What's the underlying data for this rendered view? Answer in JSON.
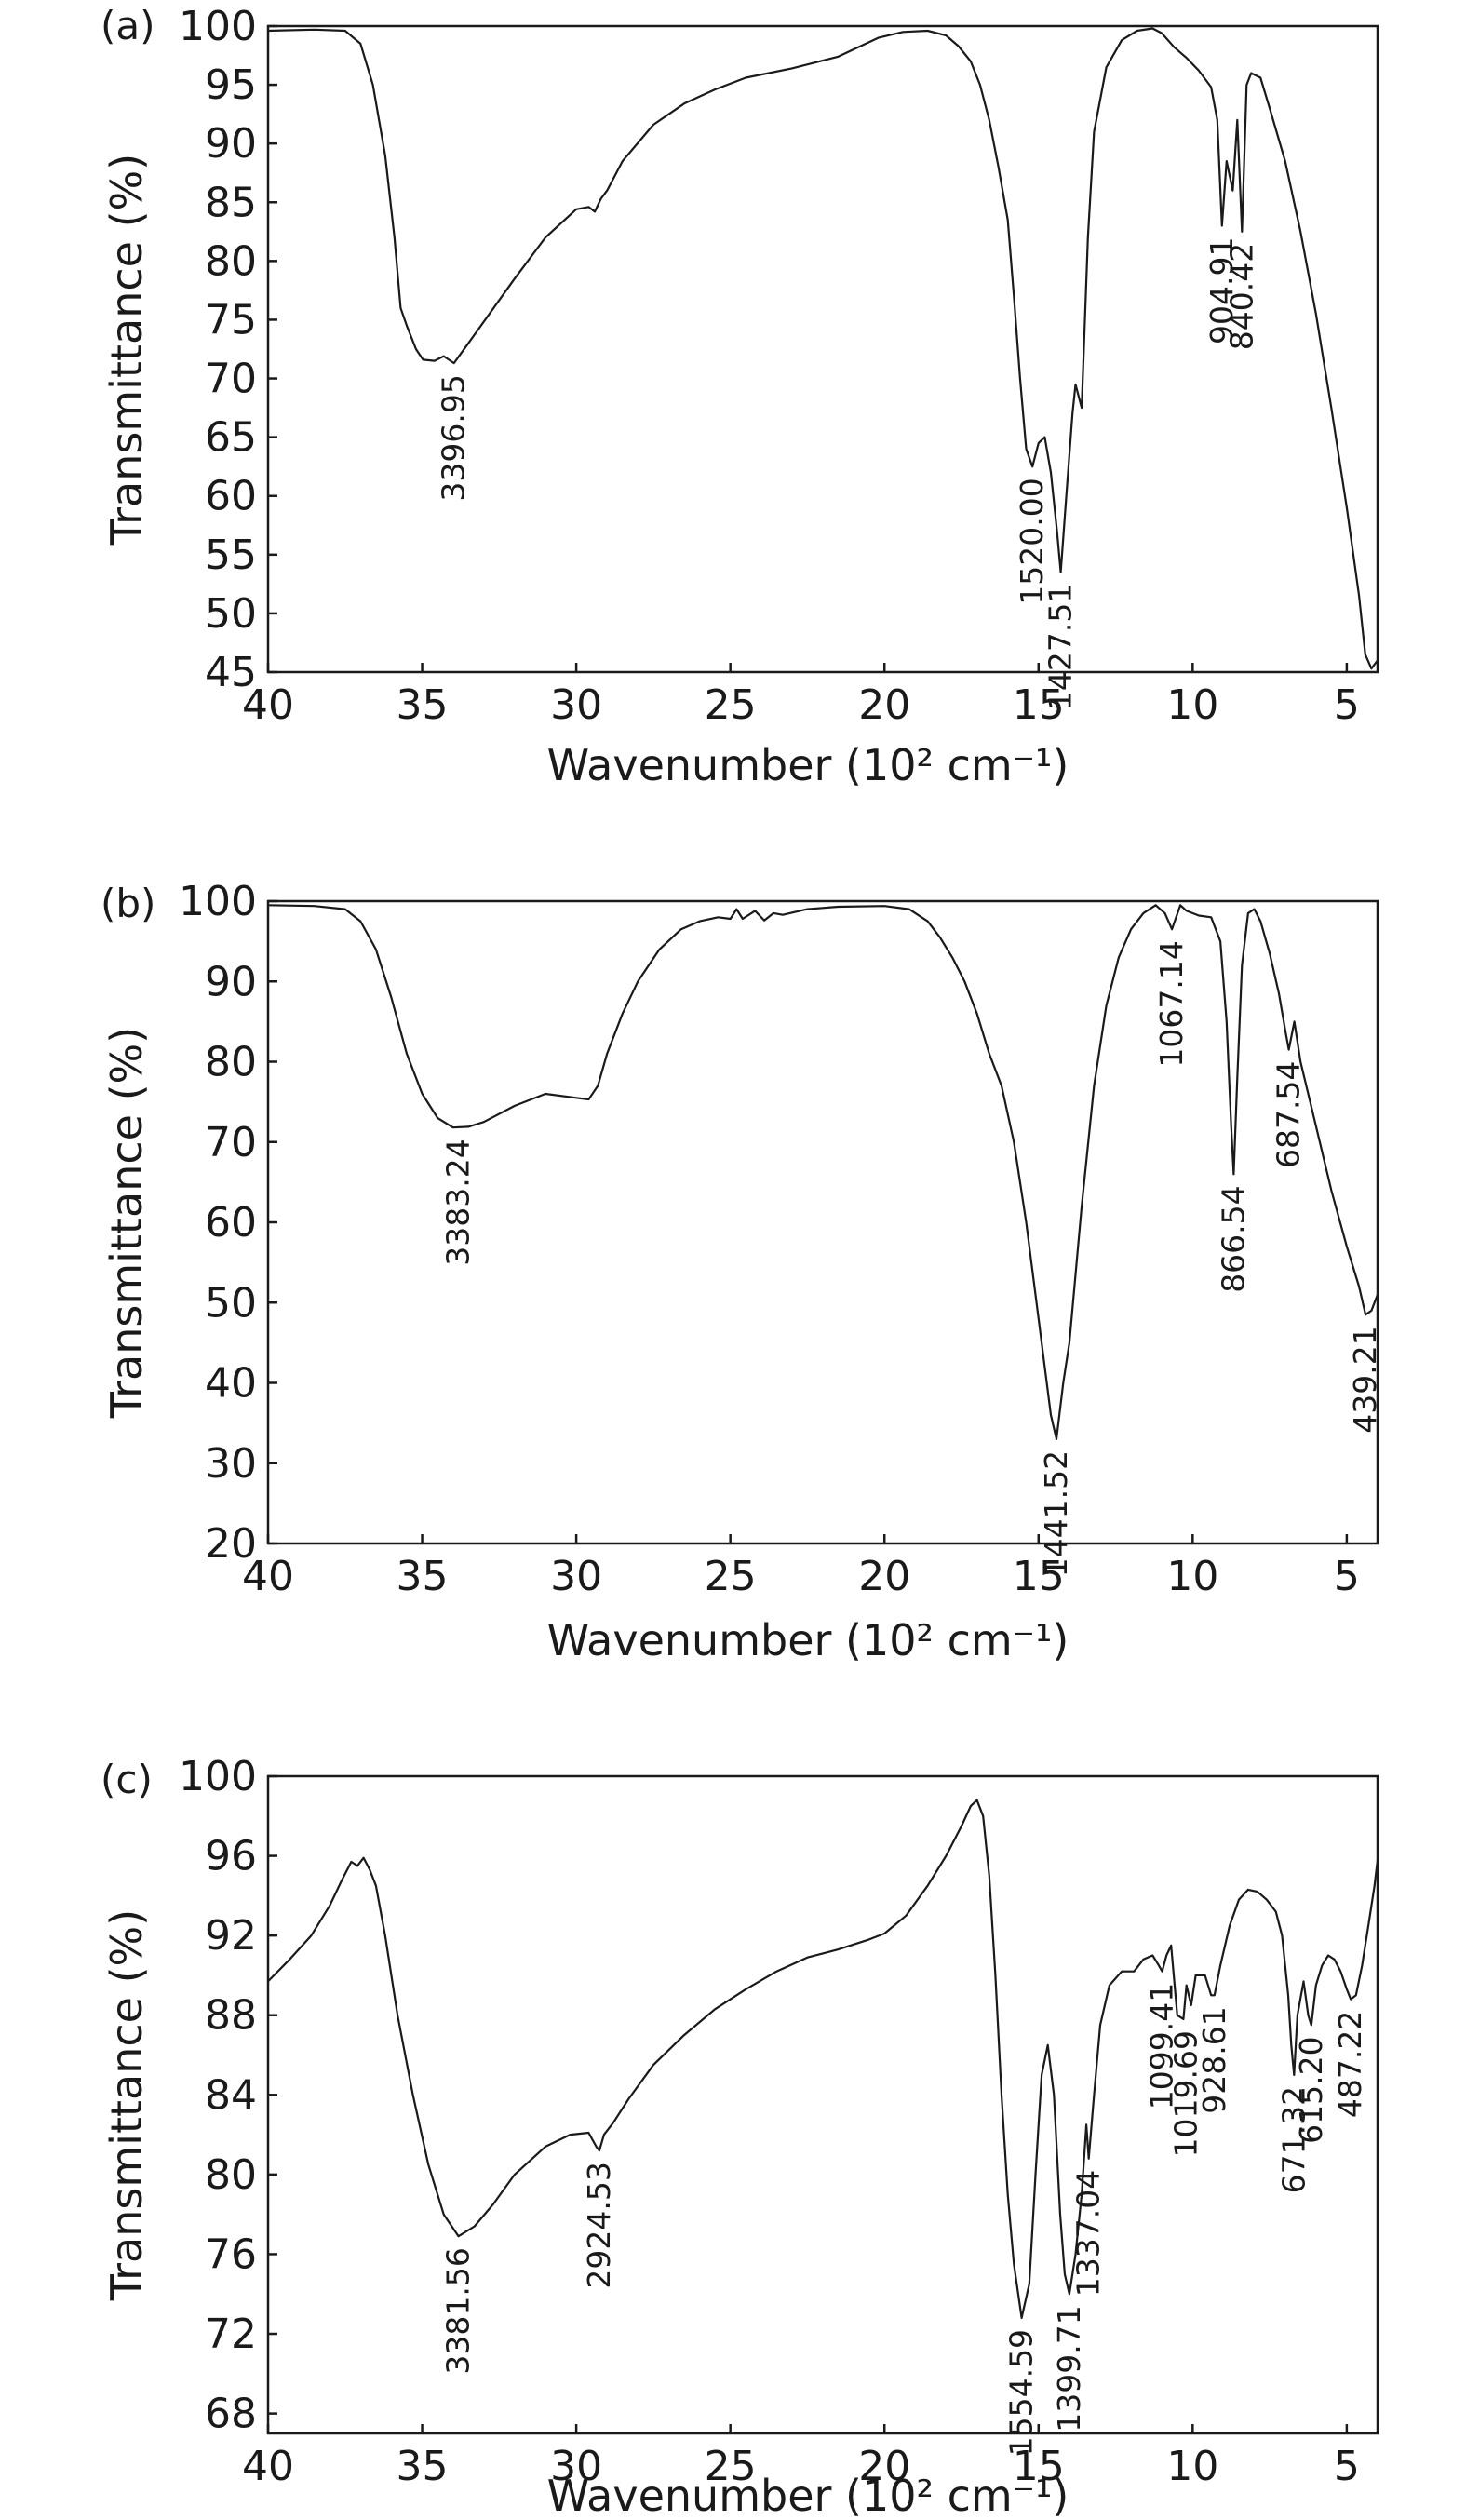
{
  "chart_data": [
    {
      "type": "line",
      "panel": "(a)",
      "xlabel": "Wavenumber (10² cm⁻¹)",
      "ylabel": "Transmittance (%)",
      "xlim": [
        40,
        4
      ],
      "ylim": [
        45,
        100
      ],
      "xticks": [
        40,
        35,
        30,
        25,
        20,
        15,
        10,
        5
      ],
      "yticks": [
        100,
        95,
        90,
        85,
        80,
        75,
        70,
        65,
        60,
        55,
        50,
        45
      ],
      "peaks": [
        {
          "label": "3396.95",
          "x": 33.97,
          "y": 71.3
        },
        {
          "label": "1520.00",
          "x": 15.2,
          "y": 62.5
        },
        {
          "label": "1427.51",
          "x": 14.28,
          "y": 53.5
        },
        {
          "label": "904.91",
          "x": 9.05,
          "y": 83.0
        },
        {
          "label": "840.42",
          "x": 8.4,
          "y": 82.5
        }
      ],
      "series": [
        {
          "name": "spectrum",
          "x": [
            40,
            38.5,
            37.5,
            37,
            36.6,
            36.2,
            35.9,
            35.7,
            35.5,
            35.2,
            34.97,
            34.6,
            34.3,
            33.97,
            33.5,
            32,
            31,
            30,
            29.6,
            29.4,
            29.2,
            29.0,
            28.5,
            27.5,
            26.5,
            25.5,
            24.5,
            23,
            21.5,
            20.2,
            19.4,
            18.6,
            18.0,
            17.6,
            17.2,
            16.9,
            16.6,
            16.3,
            16.0,
            15.8,
            15.6,
            15.4,
            15.2,
            15.0,
            14.8,
            14.6,
            14.4,
            14.28,
            14.1,
            13.9,
            13.8,
            13.6,
            13.4,
            13.2,
            12.8,
            12.3,
            11.8,
            11.3,
            11.0,
            10.6,
            10.2,
            9.8,
            9.4,
            9.2,
            9.05,
            8.9,
            8.7,
            8.55,
            8.4,
            8.25,
            8.1,
            7.8,
            7.5,
            7.0,
            6.5,
            6.0,
            5.5,
            5.0,
            4.6,
            4.4,
            4.2,
            4.0
          ],
          "y": [
            99.6,
            99.7,
            99.6,
            98.5,
            95,
            89,
            82,
            76,
            74.5,
            72.5,
            71.6,
            71.5,
            71.9,
            71.3,
            73,
            78.5,
            82,
            84.4,
            84.6,
            84.2,
            85.3,
            86,
            88.5,
            91.6,
            93.4,
            94.6,
            95.6,
            96.4,
            97.4,
            99.0,
            99.5,
            99.6,
            99.2,
            98.3,
            97.0,
            95.0,
            92.0,
            88.0,
            83.5,
            77.0,
            70.0,
            64.0,
            62.5,
            64.5,
            65.0,
            62.0,
            57.0,
            53.5,
            60.0,
            67.0,
            69.5,
            67.5,
            82.0,
            91.0,
            96.5,
            98.8,
            99.6,
            99.8,
            99.4,
            98.2,
            97.3,
            96.2,
            94.8,
            92.0,
            83.0,
            88.5,
            86.0,
            92.0,
            82.5,
            95.0,
            96.0,
            95.6,
            93.0,
            88.5,
            82.5,
            75.5,
            67.5,
            59.0,
            51.5,
            46.5,
            45.3,
            46.0
          ]
        }
      ]
    },
    {
      "type": "line",
      "panel": "(b)",
      "xlabel": "Wavenumber (10² cm⁻¹)",
      "ylabel": "Transmittance (%)",
      "xlim": [
        40,
        4
      ],
      "ylim": [
        20,
        100
      ],
      "xticks": [
        40,
        35,
        30,
        25,
        20,
        15,
        10,
        5
      ],
      "yticks": [
        100,
        90,
        80,
        70,
        60,
        50,
        40,
        30,
        20
      ],
      "peaks": [
        {
          "label": "3383.24",
          "x": 33.83,
          "y": 71.8
        },
        {
          "label": "1441.52",
          "x": 14.42,
          "y": 33.0
        },
        {
          "label": "1067.14",
          "x": 10.67,
          "y": 96.5
        },
        {
          "label": "866.54",
          "x": 8.67,
          "y": 66.0
        },
        {
          "label": "687.54",
          "x": 6.88,
          "y": 81.5
        },
        {
          "label": "439.21",
          "x": 4.39,
          "y": 48.5
        }
      ],
      "series": [
        {
          "name": "spectrum",
          "x": [
            40,
            38.5,
            37.5,
            37,
            36.5,
            36,
            35.5,
            35,
            34.5,
            34.0,
            33.5,
            33,
            32,
            31,
            30,
            29.6,
            29.3,
            29,
            28.5,
            28,
            27.3,
            26.6,
            26,
            25.4,
            25,
            24.8,
            24.6,
            24.2,
            23.9,
            23.6,
            23.3,
            22.5,
            21.5,
            20,
            19.2,
            18.6,
            18.2,
            17.8,
            17.4,
            17.0,
            16.6,
            16.2,
            15.8,
            15.4,
            15.0,
            14.8,
            14.6,
            14.42,
            14.2,
            14.0,
            13.6,
            13.2,
            12.8,
            12.4,
            12.0,
            11.6,
            11.2,
            10.9,
            10.67,
            10.4,
            10.2,
            9.8,
            9.4,
            9.1,
            8.9,
            8.75,
            8.67,
            8.55,
            8.4,
            8.2,
            8.0,
            7.8,
            7.5,
            7.2,
            7.0,
            6.88,
            6.7,
            6.5,
            6.0,
            5.5,
            5.0,
            4.6,
            4.39,
            4.2,
            4.0
          ],
          "y": [
            99.5,
            99.4,
            99.0,
            97.5,
            94,
            88,
            81,
            76,
            73,
            71.8,
            71.9,
            72.5,
            74.5,
            76.0,
            75.5,
            75.3,
            77,
            81,
            86,
            90,
            94,
            96.5,
            97.5,
            98.0,
            97.8,
            99.0,
            97.8,
            98.8,
            97.6,
            98.5,
            98.3,
            99.0,
            99.3,
            99.4,
            99.0,
            97.5,
            95.5,
            93.0,
            90.0,
            86.0,
            81.0,
            77.0,
            70.0,
            60.0,
            48.0,
            42.0,
            36.0,
            33.0,
            40.0,
            45.0,
            62.0,
            77.0,
            87.0,
            93.0,
            96.5,
            98.5,
            99.5,
            98.5,
            96.5,
            99.5,
            98.8,
            98.2,
            98.0,
            95.0,
            85.0,
            72.0,
            66.0,
            78.0,
            92.0,
            98.5,
            99.0,
            97.5,
            93.5,
            88.5,
            84.0,
            81.5,
            85.0,
            80.0,
            72.0,
            64.0,
            57.0,
            52.0,
            48.5,
            49.0,
            51.0
          ]
        }
      ]
    },
    {
      "type": "line",
      "panel": "(c)",
      "xlabel": "Wavenumber (10² cm⁻¹)",
      "ylabel": "Transmittance (%)",
      "xlim": [
        40,
        4
      ],
      "ylim": [
        67,
        100
      ],
      "xticks": [
        40,
        35,
        30,
        25,
        20,
        15,
        10,
        5
      ],
      "yticks": [
        100,
        96,
        92,
        88,
        84,
        80,
        76,
        72,
        68
      ],
      "peaks": [
        {
          "label": "3381.56",
          "x": 33.82,
          "y": 76.9
        },
        {
          "label": "2924.53",
          "x": 29.25,
          "y": 81.2
        },
        {
          "label": "1554.59",
          "x": 15.55,
          "y": 72.8
        },
        {
          "label": "1399.71",
          "x": 14.0,
          "y": 74.0
        },
        {
          "label": "1337.04",
          "x": 13.37,
          "y": 80.8
        },
        {
          "label": "1099.41",
          "x": 10.99,
          "y": 90.2
        },
        {
          "label": "1019.69",
          "x": 10.2,
          "y": 87.8
        },
        {
          "label": "928.61",
          "x": 9.29,
          "y": 89.0
        },
        {
          "label": "671.32",
          "x": 6.71,
          "y": 85.0
        },
        {
          "label": "615.20",
          "x": 6.15,
          "y": 87.5
        },
        {
          "label": "487.22",
          "x": 4.87,
          "y": 88.8
        }
      ],
      "series": [
        {
          "name": "spectrum",
          "x": [
            40,
            39.3,
            38.6,
            38.0,
            37.6,
            37.3,
            37.1,
            36.9,
            36.7,
            36.5,
            36.2,
            35.8,
            35.3,
            34.8,
            34.3,
            33.82,
            33.3,
            32.7,
            32,
            31,
            30.2,
            29.6,
            29.35,
            29.25,
            29.1,
            28.8,
            28.3,
            27.5,
            26.5,
            25.5,
            24.5,
            23.5,
            22.5,
            21.5,
            20.5,
            20.0,
            19.3,
            18.6,
            18.0,
            17.5,
            17.2,
            17.0,
            16.8,
            16.6,
            16.4,
            16.2,
            16.0,
            15.8,
            15.55,
            15.3,
            15.1,
            14.9,
            14.7,
            14.5,
            14.3,
            14.15,
            14.0,
            13.8,
            13.6,
            13.45,
            13.37,
            13.2,
            13.0,
            12.7,
            12.3,
            11.9,
            11.6,
            11.3,
            11.1,
            10.99,
            10.85,
            10.7,
            10.5,
            10.3,
            10.2,
            10.05,
            9.9,
            9.6,
            9.4,
            9.29,
            9.1,
            8.8,
            8.5,
            8.2,
            7.9,
            7.6,
            7.3,
            7.1,
            6.9,
            6.8,
            6.71,
            6.6,
            6.4,
            6.25,
            6.15,
            6.0,
            5.8,
            5.6,
            5.4,
            5.2,
            5.0,
            4.87,
            4.7,
            4.5,
            4.3,
            4.1,
            4.0
          ],
          "y": [
            89.7,
            90.8,
            92.0,
            93.5,
            94.8,
            95.7,
            95.5,
            95.9,
            95.3,
            94.5,
            92.0,
            88.0,
            84.0,
            80.5,
            78.0,
            76.9,
            77.4,
            78.5,
            80.0,
            81.4,
            82.0,
            82.1,
            81.4,
            81.2,
            82.0,
            82.6,
            83.8,
            85.5,
            87.0,
            88.3,
            89.3,
            90.2,
            90.9,
            91.3,
            91.8,
            92.1,
            93.0,
            94.5,
            96.0,
            97.5,
            98.5,
            98.8,
            98.0,
            95.0,
            90.0,
            84.0,
            79.0,
            75.5,
            72.8,
            74.5,
            80.0,
            85.0,
            86.5,
            84.0,
            78.0,
            75.0,
            74.0,
            76.0,
            79.0,
            82.5,
            80.8,
            84.0,
            87.5,
            89.5,
            90.2,
            90.2,
            90.8,
            91.0,
            90.5,
            90.2,
            91.0,
            91.5,
            88.0,
            87.8,
            89.5,
            88.5,
            90.0,
            90.0,
            89.0,
            89.0,
            90.5,
            92.5,
            93.8,
            94.3,
            94.2,
            93.8,
            93.2,
            92.0,
            89.0,
            86.5,
            85.0,
            88.0,
            89.7,
            88.0,
            87.5,
            89.5,
            90.5,
            91.0,
            90.8,
            90.2,
            89.3,
            88.8,
            89.0,
            90.5,
            92.5,
            94.5,
            95.8
          ]
        }
      ]
    }
  ]
}
